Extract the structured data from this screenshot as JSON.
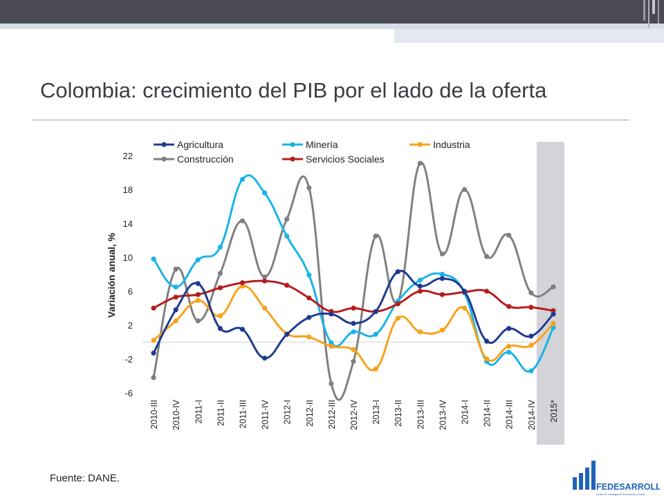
{
  "slide": {
    "title": "Colombia: crecimiento del PIB por el lado de la oferta",
    "source": "Fuente: DANE.",
    "logo_text": "FEDESARROLLO",
    "logo_subtext": "Centro de Investigación Económica y Social"
  },
  "colors": {
    "agricultura": "#1f3b8f",
    "mineria": "#19b4e8",
    "industria": "#f7a21b",
    "construccion": "#7f7f7f",
    "servicios": "#b51d1d",
    "forecast_band": "#d3d3d8",
    "logo_blue": "#1f63b8"
  },
  "chart_data": {
    "type": "line",
    "title": "",
    "xlabel": "",
    "ylabel": "Variación anual, %",
    "ylim": [
      -6,
      22
    ],
    "yticks": [
      22,
      18,
      14,
      10,
      6,
      2,
      -2,
      -6
    ],
    "categories": [
      "2010-III",
      "2010-IV",
      "2011-I",
      "2011-II",
      "2011-III",
      "2011-IV",
      "2012-I",
      "2012-II",
      "2012-III",
      "2012-IV",
      "2013-I",
      "2013-II",
      "2013-III",
      "2013-IV",
      "2014-I",
      "2014-II",
      "2014-III",
      "2014-IV",
      "2015*"
    ],
    "shaded_categories": [
      "2015*"
    ],
    "legend_position": "top",
    "series": [
      {
        "key": "agricultura",
        "name": "Agricultura",
        "values": [
          -1.3,
          3.8,
          6.9,
          1.6,
          1.5,
          -1.9,
          0.9,
          2.9,
          3.3,
          2.2,
          3.6,
          8.3,
          6.6,
          7.5,
          6.0,
          0.1,
          1.6,
          0.7,
          3.3
        ]
      },
      {
        "key": "mineria",
        "name": "Minería",
        "values": [
          9.8,
          6.5,
          9.7,
          11.2,
          19.2,
          17.6,
          12.5,
          7.9,
          -0.1,
          1.2,
          0.9,
          4.8,
          7.3,
          8.0,
          5.8,
          -2.3,
          -1.2,
          -3.4,
          1.7
        ]
      },
      {
        "key": "industria",
        "name": "Industria",
        "values": [
          0.2,
          2.5,
          4.9,
          3.1,
          6.6,
          4.0,
          1.0,
          0.6,
          -0.5,
          -0.9,
          -3.2,
          2.8,
          1.2,
          1.4,
          4.0,
          -2.0,
          -0.5,
          -0.4,
          2.2
        ]
      },
      {
        "key": "construccion",
        "name": "Construcción",
        "values": [
          -4.2,
          8.6,
          2.5,
          8.1,
          14.3,
          7.7,
          14.5,
          18.2,
          -4.9,
          -2.3,
          12.5,
          4.8,
          21.1,
          10.4,
          18.0,
          10.1,
          12.6,
          5.8,
          6.5
        ]
      },
      {
        "key": "servicios",
        "name": "Servicios Sociales",
        "values": [
          4.0,
          5.3,
          5.6,
          6.4,
          7.0,
          7.2,
          6.7,
          5.2,
          3.6,
          4.0,
          3.6,
          4.5,
          6.0,
          5.6,
          5.9,
          6.0,
          4.2,
          4.1,
          3.7
        ]
      }
    ]
  }
}
